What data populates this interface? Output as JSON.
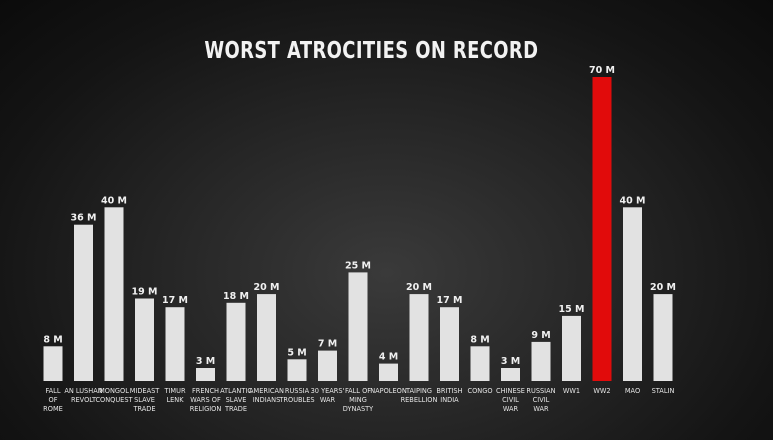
{
  "chart_data": {
    "type": "bar",
    "title": "WORST ATROCITIES ON RECORD",
    "xlabel": "",
    "ylabel": "",
    "unit_suffix": "M",
    "ylim": [
      0,
      70
    ],
    "grid": false,
    "legend": "none",
    "bar_color": "#e2e2e2",
    "highlight_color": "#e10b0b",
    "highlight_category": "WW2",
    "categories": [
      [
        "FALL",
        "OF",
        "ROME"
      ],
      [
        "AN LUSHAN",
        "REVOLT"
      ],
      [
        "MONGOL",
        "CONQUEST"
      ],
      [
        "MIDEAST",
        "SLAVE",
        "TRADE"
      ],
      [
        "TIMUR",
        "LENK"
      ],
      [
        "FRENCH",
        "WARS OF",
        "RELIGION"
      ],
      [
        "ATLANTIC",
        "SLAVE",
        "TRADE"
      ],
      [
        "AMERICAN",
        "INDIANS"
      ],
      [
        "RUSSIA",
        "TROUBLES"
      ],
      [
        "30 YEARS'",
        "WAR"
      ],
      [
        "FALL OF",
        "MING",
        "DYNASTY"
      ],
      [
        "NAPOLEON"
      ],
      [
        "TAIPING",
        "REBELLION"
      ],
      [
        "BRITISH",
        "INDIA"
      ],
      [
        "CONGO"
      ],
      [
        "CHINESE",
        "CIVIL",
        "WAR"
      ],
      [
        "RUSSIAN",
        "CIVIL",
        "WAR"
      ],
      [
        "WW1"
      ],
      [
        "WW2"
      ],
      [
        "MAO"
      ],
      [
        "STALIN"
      ]
    ],
    "values": [
      8,
      36,
      40,
      19,
      17,
      3,
      18,
      20,
      5,
      7,
      25,
      4,
      20,
      17,
      8,
      3,
      9,
      15,
      70,
      40,
      20
    ],
    "value_labels": [
      "8 M",
      "36 M",
      "40 M",
      "19 M",
      "17 M",
      "3 M",
      "18 M",
      "20 M",
      "5 M",
      "7 M",
      "25 M",
      "4 M",
      "20 M",
      "17 M",
      "8 M",
      "3 M",
      "9 M",
      "15 M",
      "70 M",
      "40 M",
      "20 M"
    ]
  }
}
